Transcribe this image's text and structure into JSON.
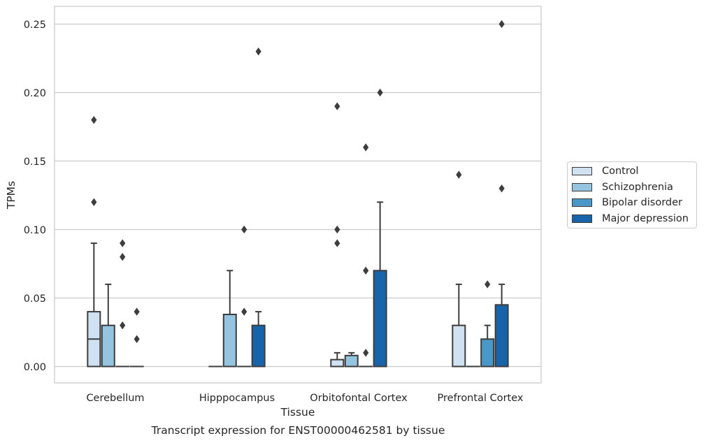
{
  "chart_data": {
    "type": "box",
    "xlabel": "Tissue",
    "ylabel": "TPMs",
    "caption": "Transcript expression for ENST00000462581 by tissue",
    "ylim": [
      -0.012,
      0.263
    ],
    "yticks": [
      0.0,
      0.05,
      0.1,
      0.15,
      0.2,
      0.25
    ],
    "ytick_labels": [
      "0.00",
      "0.05",
      "0.10",
      "0.15",
      "0.20",
      "0.25"
    ],
    "grid": "horizontal",
    "legend_position": "right",
    "categories": [
      "Cerebellum",
      "Hipppocampus",
      "Orbitofontal Cortex",
      "Prefrontal Cortex"
    ],
    "series": [
      {
        "name": "Control",
        "color": "#d0e1f2",
        "boxes": [
          {
            "q1": 0.0,
            "median": 0.02,
            "q3": 0.04,
            "whisker_low": 0.0,
            "whisker_high": 0.09,
            "outliers": [
              0.12,
              0.18
            ]
          },
          {
            "q1": 0.0,
            "median": 0.0,
            "q3": 0.0,
            "whisker_low": 0.0,
            "whisker_high": 0.0,
            "outliers": []
          },
          {
            "q1": 0.0,
            "median": 0.0,
            "q3": 0.005,
            "whisker_low": 0.0,
            "whisker_high": 0.01,
            "outliers": [
              0.09,
              0.1,
              0.19
            ]
          },
          {
            "q1": 0.0,
            "median": 0.0,
            "q3": 0.03,
            "whisker_low": 0.0,
            "whisker_high": 0.06,
            "outliers": [
              0.14
            ]
          }
        ]
      },
      {
        "name": "Schizophrenia",
        "color": "#94c4df",
        "boxes": [
          {
            "q1": 0.0,
            "median": 0.0,
            "q3": 0.03,
            "whisker_low": 0.0,
            "whisker_high": 0.06,
            "outliers": []
          },
          {
            "q1": 0.0,
            "median": 0.0,
            "q3": 0.038,
            "whisker_low": 0.0,
            "whisker_high": 0.07,
            "outliers": []
          },
          {
            "q1": 0.0,
            "median": 0.0,
            "q3": 0.008,
            "whisker_low": 0.0,
            "whisker_high": 0.01,
            "outliers": []
          },
          {
            "q1": 0.0,
            "median": 0.0,
            "q3": 0.0,
            "whisker_low": 0.0,
            "whisker_high": 0.0,
            "outliers": []
          }
        ]
      },
      {
        "name": "Bipolar disorder",
        "color": "#4a98c9",
        "boxes": [
          {
            "q1": 0.0,
            "median": 0.0,
            "q3": 0.0,
            "whisker_low": 0.0,
            "whisker_high": 0.0,
            "outliers": [
              0.03,
              0.08,
              0.09
            ]
          },
          {
            "q1": 0.0,
            "median": 0.0,
            "q3": 0.0,
            "whisker_low": 0.0,
            "whisker_high": 0.0,
            "outliers": [
              0.04,
              0.1
            ]
          },
          {
            "q1": 0.0,
            "median": 0.0,
            "q3": 0.0,
            "whisker_low": 0.0,
            "whisker_high": 0.0,
            "outliers": [
              0.01,
              0.07,
              0.16
            ]
          },
          {
            "q1": 0.0,
            "median": 0.0,
            "q3": 0.02,
            "whisker_low": 0.0,
            "whisker_high": 0.03,
            "outliers": [
              0.06
            ]
          }
        ]
      },
      {
        "name": "Major depression",
        "color": "#1764ab",
        "boxes": [
          {
            "q1": 0.0,
            "median": 0.0,
            "q3": 0.0,
            "whisker_low": 0.0,
            "whisker_high": 0.0,
            "outliers": [
              0.02,
              0.04
            ]
          },
          {
            "q1": 0.0,
            "median": 0.0,
            "q3": 0.03,
            "whisker_low": 0.0,
            "whisker_high": 0.04,
            "outliers": [
              0.23
            ]
          },
          {
            "q1": 0.0,
            "median": 0.0,
            "q3": 0.07,
            "whisker_low": 0.0,
            "whisker_high": 0.12,
            "outliers": [
              0.2
            ]
          },
          {
            "q1": 0.0,
            "median": 0.0,
            "q3": 0.045,
            "whisker_low": 0.0,
            "whisker_high": 0.06,
            "outliers": [
              0.13,
              0.25
            ]
          }
        ]
      }
    ]
  }
}
